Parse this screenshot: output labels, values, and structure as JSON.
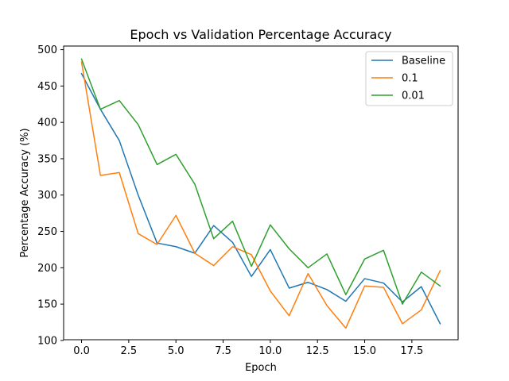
{
  "chart_data": {
    "type": "line",
    "title": "Epoch vs Validation Percentage Accuracy",
    "xlabel": "Epoch",
    "ylabel": "Percentage Accuracy (%)",
    "x": [
      0,
      1,
      2,
      3,
      4,
      5,
      6,
      7,
      8,
      9,
      10,
      11,
      12,
      13,
      14,
      15,
      16,
      17,
      18,
      19
    ],
    "xlim": [
      -0.95,
      19.95
    ],
    "ylim": [
      100,
      500
    ],
    "xticks": [
      0,
      2.5,
      5,
      7.5,
      10,
      12.5,
      15,
      17.5
    ],
    "xtick_labels": [
      "0.0",
      "2.5",
      "5.0",
      "7.5",
      "10.0",
      "12.5",
      "15.0",
      "17.5"
    ],
    "yticks": [
      100,
      150,
      200,
      250,
      300,
      350,
      400,
      450,
      500
    ],
    "ytick_labels": [
      "100",
      "150",
      "200",
      "250",
      "300",
      "350",
      "400",
      "450",
      "500"
    ],
    "grid": false,
    "legend_position": "top-right",
    "series": [
      {
        "name": "Baseline",
        "color": "#1f77b4",
        "values": [
          467,
          418,
          375,
          300,
          234,
          229,
          220,
          258,
          235,
          188,
          225,
          172,
          180,
          170,
          154,
          185,
          179,
          153,
          174,
          123
        ]
      },
      {
        "name": "0.1",
        "color": "#ff7f0e",
        "values": [
          483,
          327,
          331,
          247,
          232,
          272,
          220,
          203,
          229,
          218,
          168,
          134,
          192,
          148,
          117,
          175,
          173,
          123,
          142,
          196
        ]
      },
      {
        "name": "0.01",
        "color": "#2ca02c",
        "values": [
          487,
          418,
          430,
          397,
          342,
          356,
          315,
          240,
          264,
          202,
          259,
          226,
          200,
          219,
          163,
          212,
          224,
          150,
          194,
          175
        ]
      }
    ]
  }
}
